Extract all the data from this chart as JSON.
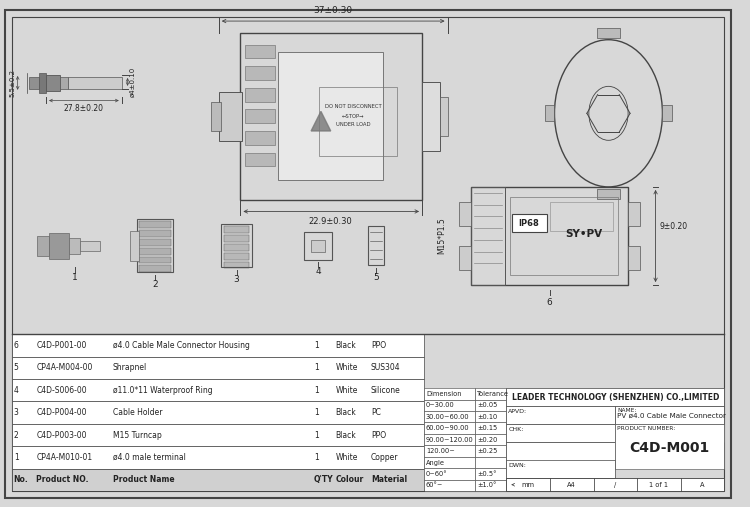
{
  "bg_color": "#d8d8d8",
  "drawing_bg": "#f2f2f2",
  "line_color": "#444444",
  "text_color": "#222222",
  "bom_rows": [
    {
      "no": "6",
      "part": "C4D-P001-00",
      "name": "ø4.0 Cable Male Connector Housing",
      "qty": "1",
      "colour": "Black",
      "material": "PPO"
    },
    {
      "no": "5",
      "part": "CP4A-M004-00",
      "name": "Shrapnel",
      "qty": "1",
      "colour": "White",
      "material": "SUS304"
    },
    {
      "no": "4",
      "part": "C4D-S006-00",
      "name": "ø11.0*11 Waterproof Ring",
      "qty": "1",
      "colour": "White",
      "material": "Silicone"
    },
    {
      "no": "3",
      "part": "C4D-P004-00",
      "name": "Cable Holder",
      "qty": "1",
      "colour": "Black",
      "material": "PC"
    },
    {
      "no": "2",
      "part": "C4D-P003-00",
      "name": "M15 Turncap",
      "qty": "1",
      "colour": "Black",
      "material": "PPO"
    },
    {
      "no": "1",
      "part": "CP4A-M010-01",
      "name": "ø4.0 male terminal",
      "qty": "1",
      "colour": "White",
      "material": "Copper"
    },
    {
      "no": "No.",
      "part": "Product NO.",
      "name": "Product Name",
      "qty": "Q'TY",
      "colour": "Colour",
      "material": "Material"
    }
  ],
  "tol_data": [
    [
      "Dimension",
      "Tolerance"
    ],
    [
      "0~30.00",
      "±0.05"
    ],
    [
      "30.00~60.00",
      "±0.10"
    ],
    [
      "60.00~90.00",
      "±0.15"
    ],
    [
      "90.00~120.00",
      "±0.20"
    ],
    [
      "120.00~",
      "±0.25"
    ],
    [
      "Angle",
      ""
    ],
    [
      "0~60°",
      "±0.5°"
    ],
    [
      "60°~",
      "±1.0°"
    ]
  ],
  "company": "LEADER TECHNOLOGY (SHENZHEN) CO.,LIMITED",
  "apvd": "APVD:",
  "chk": "CHK:",
  "dwn": "DWN:",
  "name_label": "NAME:",
  "product_name": "PV ø4.0 Cable Male Connector",
  "product_number_label": "PRODUCT NUMBER:",
  "product_number": "C4D-M001",
  "units": "mm",
  "size": "A4",
  "scale": "/",
  "sheet": "1 of 1",
  "rev": "A",
  "dim_37": "37±0.30",
  "dim_22_9": "22.9±0.30",
  "dim_5_5": "5.5±0.2",
  "dim_27_8": "27.8±0.20",
  "dim_dia4": "ø4±0.10",
  "dim_9": "9±0.20",
  "dim_m15": "M15*P1.5",
  "ip68": "IP68",
  "sy_pv": "SY•PV",
  "do_not": "DO NOT DISCONNECT",
  "stop": "←STOP→",
  "under_load": "UNDER LOAD"
}
